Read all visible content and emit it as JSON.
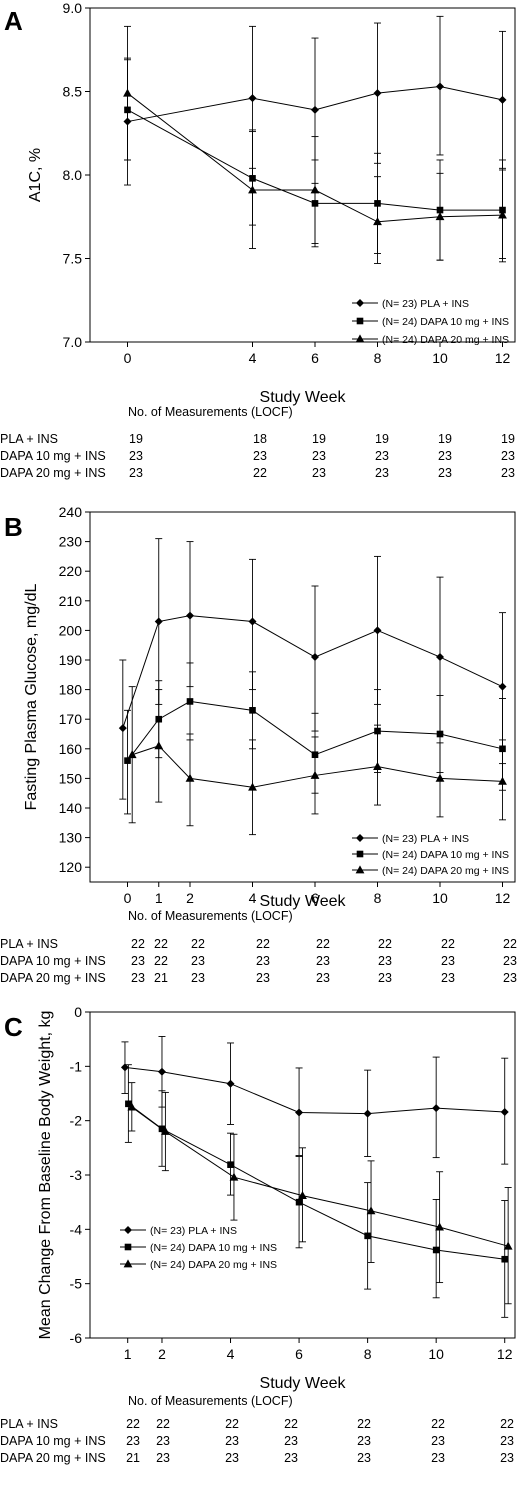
{
  "chart_data": [
    {
      "type": "line",
      "panel": "A",
      "ylabel": "A1C, %",
      "xlabel": "Study Week",
      "ylim": [
        7.0,
        9.0
      ],
      "yticks": [
        "7.0",
        "7.5",
        "8.0",
        "8.5",
        "9.0"
      ],
      "xticks": [
        "0",
        "4",
        "6",
        "8",
        "10",
        "12"
      ],
      "xtick_values": [
        0,
        4,
        6,
        8,
        10,
        12
      ],
      "xlim": [
        -1.2,
        12.4
      ],
      "legend_position": "bottom-right",
      "series": [
        {
          "name": "(N= 23) PLA + INS",
          "marker": "diamond",
          "x": [
            0,
            4,
            6,
            8,
            10,
            12
          ],
          "y": [
            8.32,
            8.46,
            8.39,
            8.49,
            8.53,
            8.45
          ],
          "err_low": [
            7.94,
            8.04,
            7.95,
            8.07,
            8.12,
            8.04
          ],
          "err_high": [
            8.7,
            8.89,
            8.82,
            8.91,
            8.95,
            8.86
          ]
        },
        {
          "name": "(N= 24) DAPA 10 mg + INS",
          "marker": "square",
          "x": [
            0,
            4,
            6,
            8,
            10,
            12
          ],
          "y": [
            8.39,
            7.98,
            7.83,
            7.83,
            7.79,
            7.79
          ],
          "err_low": [
            8.09,
            7.7,
            7.57,
            7.53,
            7.49,
            7.48
          ],
          "err_high": [
            8.69,
            8.26,
            8.09,
            8.13,
            8.09,
            8.09
          ]
        },
        {
          "name": "(N= 24) DAPA 20 mg + INS",
          "marker": "triangle",
          "x": [
            0,
            4,
            6,
            8,
            10,
            12
          ],
          "y": [
            8.49,
            7.91,
            7.91,
            7.72,
            7.75,
            7.76
          ],
          "err_low": [
            8.09,
            7.56,
            7.59,
            7.47,
            7.49,
            7.5
          ],
          "err_high": [
            8.89,
            8.27,
            8.23,
            7.99,
            8.01,
            8.03
          ]
        }
      ],
      "measurements": {
        "title": "No. of Measurements (LOCF)",
        "rows": [
          {
            "label": "PLA + INS",
            "counts": [
              "19",
              "18",
              "19",
              "19",
              "19",
              "19"
            ]
          },
          {
            "label": "DAPA 10 mg + INS",
            "counts": [
              "23",
              "23",
              "23",
              "23",
              "23",
              "23"
            ]
          },
          {
            "label": "DAPA 20 mg + INS",
            "counts": [
              "23",
              "22",
              "23",
              "23",
              "23",
              "23"
            ]
          }
        ]
      }
    },
    {
      "type": "line",
      "panel": "B",
      "ylabel": "Fasting Plasma Glucose, mg/dL",
      "xlabel": "Study Week",
      "ylim": [
        115,
        240
      ],
      "yticks": [
        "120",
        "130",
        "140",
        "150",
        "160",
        "170",
        "180",
        "190",
        "200",
        "210",
        "220",
        "230",
        "240"
      ],
      "xticks": [
        "0",
        "1",
        "2",
        "4",
        "6",
        "8",
        "10",
        "12"
      ],
      "xtick_values": [
        0,
        1,
        2,
        4,
        6,
        8,
        10,
        12
      ],
      "xlim": [
        -1.2,
        12.4
      ],
      "legend_position": "bottom-right",
      "series": [
        {
          "name": "(N= 23) PLA + INS",
          "marker": "diamond",
          "x": [
            -0.15,
            1,
            2,
            4,
            6,
            8,
            10,
            12
          ],
          "y": [
            167,
            203,
            205,
            203,
            191,
            200,
            191,
            181
          ],
          "err_low": [
            143,
            175,
            181,
            180,
            166,
            175,
            165,
            155
          ],
          "err_high": [
            190,
            231,
            230,
            224,
            215,
            225,
            218,
            206
          ]
        },
        {
          "name": "(N= 24) DAPA 10 mg + INS",
          "marker": "square",
          "x": [
            0,
            1,
            2,
            4,
            6,
            8,
            10,
            12
          ],
          "y": [
            156,
            170,
            176,
            173,
            158,
            166,
            165,
            160
          ],
          "err_low": [
            138,
            157,
            163,
            160,
            145,
            152,
            152,
            146
          ],
          "err_high": [
            173,
            183,
            189,
            186,
            172,
            180,
            178,
            177
          ]
        },
        {
          "name": "(N= 24) DAPA 20 mg + INS",
          "marker": "triangle",
          "x": [
            0.15,
            1,
            2,
            4,
            6,
            8,
            10,
            12
          ],
          "y": [
            158,
            161,
            150,
            147,
            151,
            154,
            150,
            149
          ],
          "err_low": [
            135,
            142,
            134,
            131,
            138,
            141,
            137,
            136
          ],
          "err_high": [
            181,
            180,
            165,
            163,
            164,
            168,
            162,
            163
          ]
        }
      ],
      "measurements": {
        "title": "No. of Measurements (LOCF)",
        "rows": [
          {
            "label": "PLA + INS",
            "counts": [
              "22",
              "22",
              "22",
              "22",
              "22",
              "22",
              "22",
              "22"
            ]
          },
          {
            "label": "DAPA 10 mg + INS",
            "counts": [
              "23",
              "22",
              "23",
              "23",
              "23",
              "23",
              "23",
              "23"
            ]
          },
          {
            "label": "DAPA 20 mg + INS",
            "counts": [
              "23",
              "21",
              "23",
              "23",
              "23",
              "23",
              "23",
              "23"
            ]
          }
        ]
      }
    },
    {
      "type": "line",
      "panel": "C",
      "ylabel": "Mean Change From Baseline Body Weight, kg",
      "xlabel": "Study Week",
      "ylim": [
        -6,
        0
      ],
      "yticks": [
        "-6",
        "-5",
        "-4",
        "-3",
        "-2",
        "-1",
        "0"
      ],
      "xticks": [
        "1",
        "2",
        "4",
        "6",
        "8",
        "10",
        "12"
      ],
      "xtick_values": [
        1,
        2,
        4,
        6,
        8,
        10,
        12
      ],
      "xlim": [
        -0.1,
        12.3
      ],
      "legend_position": "bottom-left",
      "series": [
        {
          "name": "(N= 23) PLA + INS",
          "marker": "diamond",
          "x": [
            0.92,
            2,
            4,
            6,
            8,
            10,
            12
          ],
          "y": [
            -1.02,
            -1.1,
            -1.32,
            -1.85,
            -1.87,
            -1.77,
            -1.84
          ],
          "err_low": [
            -1.5,
            -1.75,
            -2.07,
            -2.64,
            -2.66,
            -2.68,
            -2.8
          ],
          "err_high": [
            -0.55,
            -0.45,
            -0.57,
            -1.03,
            -1.07,
            -0.83,
            -0.85
          ]
        },
        {
          "name": "(N= 24) DAPA 10 mg + INS",
          "marker": "square",
          "x": [
            1.02,
            2,
            4,
            6,
            8,
            10,
            12
          ],
          "y": [
            -1.69,
            -2.15,
            -2.81,
            -3.5,
            -4.12,
            -4.38,
            -4.55
          ],
          "err_low": [
            -2.4,
            -2.84,
            -3.37,
            -4.34,
            -5.1,
            -5.26,
            -5.62
          ],
          "err_high": [
            -0.97,
            -1.45,
            -2.23,
            -2.66,
            -3.14,
            -3.45,
            -3.47
          ]
        },
        {
          "name": "(N= 24) DAPA 20 mg + INS",
          "marker": "triangle",
          "x": [
            1.12,
            2.1,
            4.1,
            6.1,
            8.1,
            10.1,
            12.1
          ],
          "y": [
            -1.75,
            -2.2,
            -3.04,
            -3.38,
            -3.66,
            -3.96,
            -4.31
          ],
          "err_low": [
            -2.19,
            -2.92,
            -3.83,
            -4.23,
            -4.61,
            -4.98,
            -5.37
          ],
          "err_high": [
            -1.3,
            -1.48,
            -2.25,
            -2.5,
            -2.74,
            -2.94,
            -3.23
          ]
        }
      ],
      "measurements": {
        "title": "No. of Measurements (LOCF)",
        "rows": [
          {
            "label": "PLA + INS",
            "counts": [
              "22",
              "22",
              "22",
              "22",
              "22",
              "22",
              "22"
            ]
          },
          {
            "label": "DAPA 10 mg + INS",
            "counts": [
              "23",
              "23",
              "23",
              "23",
              "23",
              "23",
              "23"
            ]
          },
          {
            "label": "DAPA 20 mg + INS",
            "counts": [
              "21",
              "23",
              "23",
              "23",
              "23",
              "23",
              "23"
            ]
          }
        ]
      }
    }
  ]
}
